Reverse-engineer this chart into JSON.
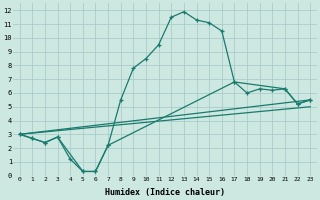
{
  "xlabel": "Humidex (Indice chaleur)",
  "bg_color": "#cce8e0",
  "grid_color": "#aacccc",
  "line_color": "#1a7a6e",
  "xlim": [
    -0.5,
    23.5
  ],
  "ylim": [
    0,
    12.5
  ],
  "xticks": [
    0,
    1,
    2,
    3,
    4,
    5,
    6,
    7,
    8,
    9,
    10,
    11,
    12,
    13,
    14,
    15,
    16,
    17,
    18,
    19,
    20,
    21,
    22,
    23
  ],
  "yticks": [
    0,
    1,
    2,
    3,
    4,
    5,
    6,
    7,
    8,
    9,
    10,
    11,
    12
  ],
  "line1_x": [
    0,
    1,
    2,
    3,
    4,
    5,
    6,
    7,
    8,
    9,
    10,
    11,
    12,
    13,
    14,
    15,
    16,
    17,
    18,
    19,
    20,
    21,
    22,
    23
  ],
  "line1_y": [
    3.0,
    2.7,
    2.4,
    2.8,
    1.2,
    0.3,
    0.3,
    2.2,
    5.5,
    7.8,
    8.5,
    9.5,
    11.5,
    11.9,
    11.3,
    11.1,
    10.5,
    6.8,
    6.0,
    6.3,
    6.2,
    6.3,
    5.2,
    5.5
  ],
  "line2_x": [
    0,
    23
  ],
  "line2_y": [
    3.0,
    5.0
  ],
  "line3_x": [
    0,
    23
  ],
  "line3_y": [
    3.0,
    5.5
  ],
  "line4_x": [
    0,
    1,
    2,
    3,
    5,
    6,
    7,
    17,
    21,
    22,
    23
  ],
  "line4_y": [
    3.0,
    2.7,
    2.4,
    2.8,
    0.3,
    0.3,
    2.2,
    6.8,
    6.3,
    5.2,
    5.5
  ]
}
